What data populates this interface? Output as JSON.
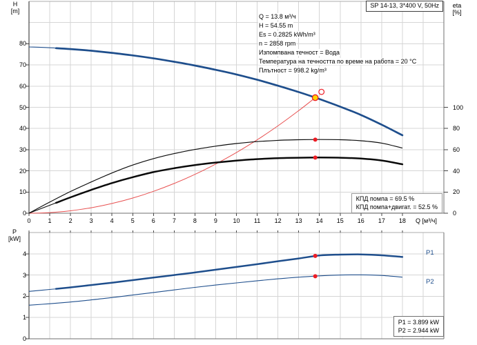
{
  "title_box": "SP 14-13, 3*400 V, 50Hz",
  "colors": {
    "curve_blue": "#1e4e8c",
    "label_blue": "#1e4e8c",
    "curve_red": "#e85050",
    "marker_red": "#ed1c24",
    "duty_yellow": "#ffd400",
    "curve_black": "#0a0a0a",
    "grid": "#d5d5d5",
    "border_light": "#ababab",
    "border_dark": "#6f6f6f",
    "axis_black": "#222222",
    "tick_color": "#444444"
  },
  "top_chart": {
    "y_axis": {
      "label_line1": "H",
      "label_line2": "[m]"
    },
    "eta_axis": {
      "label_line1": "eta",
      "label_line2": "[%]"
    },
    "x_axis": {
      "unit_label": "Q [м³/ч]"
    },
    "info_lines": [
      "Q = 13.8 м³/ч",
      "H = 54.55 m",
      "Es = 0.2825 kWh/m³",
      "n = 2858 rpm",
      "Изпомпвана течност = Вода",
      "Температура на течността по време на работа = 20 °C",
      "Плътност = 998.2 kg/m³"
    ],
    "kpd_lines": [
      "КПД помпа = 69.5 %",
      "КПД помпа+двигат. = 52.5 %"
    ]
  },
  "bottom_chart": {
    "y_axis": {
      "label_line1": "P",
      "label_line2": "[kW]"
    },
    "curve_labels": {
      "p1": "P1",
      "p2": "P2"
    },
    "value_lines": [
      "P1 = 3.899 kW",
      "P2 = 2.944 kW"
    ]
  },
  "chart_data": [
    {
      "type": "line",
      "title": "SP 14-13, 3*400 V, 50Hz",
      "xlabel": "Q [м³/ч]",
      "ylabel": "H [m]",
      "y2label": "eta [%]",
      "xlim": [
        0,
        20
      ],
      "ylim": [
        0,
        100
      ],
      "y2lim": [
        0,
        100
      ],
      "y2_alignment_note": "eta 100 % aligns with H = 50 m; eta 0 at chart bottom",
      "x_ticks": [
        0,
        1,
        2,
        3,
        4,
        5,
        6,
        7,
        8,
        9,
        10,
        11,
        12,
        13,
        14,
        15,
        16,
        17,
        18
      ],
      "y_ticks": [
        0,
        10,
        20,
        30,
        40,
        50,
        60,
        70,
        80
      ],
      "y2_ticks": [
        0,
        20,
        40,
        60,
        80,
        100
      ],
      "grid": true,
      "x": [
        0,
        1,
        2,
        3,
        4,
        5,
        6,
        7,
        8,
        9,
        10,
        11,
        12,
        13,
        14,
        15,
        16,
        17,
        18
      ],
      "series": [
        {
          "name": "pump head curve H(Q)",
          "axis": "y",
          "style": "thick",
          "color_key": "curve_blue",
          "values": [
            78.5,
            78.1,
            77.5,
            76.7,
            75.7,
            74.5,
            73.1,
            71.5,
            69.7,
            67.7,
            65.5,
            63.0,
            60.2,
            57.2,
            53.9,
            50.3,
            46.4,
            41.8,
            36.8
          ]
        },
        {
          "name": "efficiency pump",
          "axis": "y2",
          "style": "thin",
          "color_key": "curve_black",
          "values": [
            0,
            10.5,
            20.5,
            29.5,
            38,
            45.5,
            51.5,
            56.3,
            60.2,
            63.3,
            65.8,
            67.6,
            68.8,
            69.4,
            69.6,
            69.4,
            68.4,
            66.2,
            61.5
          ]
        },
        {
          "name": "efficiency pump+motor",
          "axis": "y2",
          "style": "thick",
          "color_key": "curve_black",
          "values": [
            0,
            7.5,
            15,
            22,
            28.5,
            34,
            38.8,
            42.5,
            45.5,
            47.8,
            49.7,
            51.1,
            52.0,
            52.4,
            52.6,
            52.4,
            51.6,
            49.8,
            46.2
          ]
        }
      ],
      "system_curve": {
        "name": "system resistance curve through duty point",
        "color_key": "curve_red",
        "x": [
          0,
          1,
          2,
          3,
          4,
          5,
          6,
          7,
          8,
          9,
          10,
          11,
          12,
          13,
          13.8
        ],
        "values": [
          0,
          0.29,
          1.15,
          2.58,
          4.58,
          7.16,
          10.31,
          14.03,
          18.33,
          23.2,
          28.64,
          34.65,
          41.24,
          48.4,
          54.55
        ]
      },
      "markers": {
        "duty_point": {
          "x": 13.8,
          "y": 54.55
        },
        "curve_point_open": {
          "x": 14.1,
          "y": 57.3
        },
        "eta_pump_point": {
          "x": 13.8,
          "y2": 69.5
        },
        "eta_motor_point": {
          "x": 13.8,
          "y2": 52.5
        }
      }
    },
    {
      "type": "line",
      "ylabel": "P [kW]",
      "xlim": [
        0,
        20
      ],
      "ylim": [
        0,
        5
      ],
      "y_ticks": [
        0,
        1,
        2,
        3,
        4
      ],
      "grid": true,
      "x": [
        0,
        1,
        2,
        3,
        4,
        5,
        6,
        7,
        8,
        9,
        10,
        11,
        12,
        13,
        14,
        15,
        16,
        17,
        18
      ],
      "series": [
        {
          "name": "P1 input power",
          "style": "thick",
          "color_key": "curve_blue",
          "values": [
            2.23,
            2.32,
            2.42,
            2.53,
            2.64,
            2.76,
            2.88,
            3.0,
            3.12,
            3.25,
            3.38,
            3.51,
            3.65,
            3.78,
            3.92,
            3.96,
            3.97,
            3.93,
            3.85
          ]
        },
        {
          "name": "P2 shaft power",
          "style": "thin",
          "color_key": "curve_blue",
          "values": [
            1.58,
            1.65,
            1.73,
            1.83,
            1.94,
            2.06,
            2.18,
            2.3,
            2.42,
            2.53,
            2.63,
            2.73,
            2.82,
            2.9,
            2.96,
            3.0,
            3.01,
            2.98,
            2.9
          ]
        }
      ],
      "markers": {
        "p1_point": {
          "x": 13.8,
          "y": 3.899
        },
        "p2_point": {
          "x": 13.8,
          "y": 2.944
        }
      }
    }
  ]
}
